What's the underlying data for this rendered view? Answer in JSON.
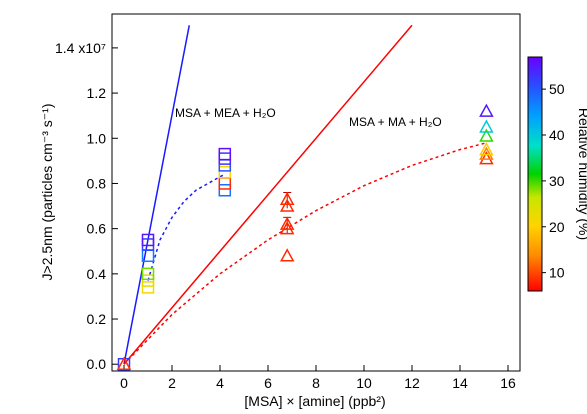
{
  "chart_data": {
    "type": "scatter",
    "x_axis": {
      "label": "[MSA] × [amine] (ppb²)",
      "range": [
        -0.5,
        16.5
      ],
      "ticks": [
        0,
        2,
        4,
        6,
        8,
        10,
        12,
        14,
        16
      ]
    },
    "y_axis": {
      "label": "J>2.5nm (particles cm⁻³ s⁻¹)",
      "range": [
        -300000.0,
        15500000.0
      ],
      "ticks": [
        0.0,
        0.2,
        0.4,
        0.6,
        0.8,
        1.0,
        1.2,
        1.4
      ],
      "tick_labels": [
        "0.0",
        "0.2",
        "0.4",
        "0.6",
        "0.8",
        "1.0",
        "1.2",
        "1.4 x10⁷"
      ]
    },
    "colorbar": {
      "label": "Relative humidity (%)",
      "range": [
        6,
        57
      ],
      "ticks": [
        10,
        20,
        30,
        40,
        50
      ],
      "colors": [
        "#ff0000",
        "#ff8a00",
        "#ffd400",
        "#c8e600",
        "#00d200",
        "#00e0c8",
        "#00a0ff",
        "#2a4cff",
        "#6a00ff"
      ]
    },
    "series": [
      {
        "name": "MSA + MEA + H₂O",
        "marker": "square",
        "color": "#1a1aff",
        "points": [
          {
            "x": 0.0,
            "y": 0.0,
            "rh": 52
          },
          {
            "x": 1.0,
            "y": 3400000.0,
            "rh": 20
          },
          {
            "x": 1.0,
            "y": 3700000.0,
            "rh": 22
          },
          {
            "x": 1.0,
            "y": 4000000.0,
            "rh": 28
          },
          {
            "x": 1.0,
            "y": 4800000.0,
            "rh": 47
          },
          {
            "x": 1.0,
            "y": 5300000.0,
            "rh": 52
          },
          {
            "x": 1.0,
            "y": 5500000.0,
            "rh": 55
          },
          {
            "x": 4.2,
            "y": 7700000.0,
            "rh": 48
          },
          {
            "x": 4.2,
            "y": 8000000.0,
            "rh": 8
          },
          {
            "x": 4.2,
            "y": 8500000.0,
            "rh": 20
          },
          {
            "x": 4.2,
            "y": 8800000.0,
            "rh": 50
          },
          {
            "x": 4.2,
            "y": 9100000.0,
            "rh": 53
          },
          {
            "x": 4.2,
            "y": 9300000.0,
            "rh": 56
          }
        ],
        "fit_line": [
          [
            0,
            0
          ],
          [
            2.72,
            15000000.0
          ]
        ],
        "fit_curve": [
          [
            1.0,
            3700000.0
          ],
          [
            1.5,
            5500000.0
          ],
          [
            2.0,
            6500000.0
          ],
          [
            2.5,
            7200000.0
          ],
          [
            3.0,
            7700000.0
          ],
          [
            3.5,
            8000000.0
          ],
          [
            4.0,
            8300000.0
          ],
          [
            4.2,
            8400000.0
          ]
        ]
      },
      {
        "name": "MSA + MA + H₂O",
        "marker": "triangle",
        "color": "#ff0000",
        "points": [
          {
            "x": 0.0,
            "y": 0.0,
            "rh": 8
          },
          {
            "x": 6.8,
            "y": 4800000.0,
            "rh": 8
          },
          {
            "x": 6.8,
            "y": 6000000.0,
            "rh": 8
          },
          {
            "x": 6.8,
            "y": 6200000.0,
            "rh": 8
          },
          {
            "x": 6.8,
            "y": 7000000.0,
            "rh": 8
          },
          {
            "x": 6.8,
            "y": 7300000.0,
            "rh": 8
          },
          {
            "x": 15.1,
            "y": 9100000.0,
            "rh": 8
          },
          {
            "x": 15.1,
            "y": 9300000.0,
            "rh": 12
          },
          {
            "x": 15.1,
            "y": 9500000.0,
            "rh": 18
          },
          {
            "x": 15.1,
            "y": 10100000.0,
            "rh": 30
          },
          {
            "x": 15.1,
            "y": 10500000.0,
            "rh": 40
          },
          {
            "x": 15.1,
            "y": 11200000.0,
            "rh": 55
          }
        ],
        "error_bars": [
          {
            "x": 6.8,
            "y": 7300000.0,
            "lo": 6900000.0,
            "hi": 7600000.0
          },
          {
            "x": 6.8,
            "y": 6200000.0,
            "lo": 5800000.0,
            "hi": 6500000.0
          }
        ],
        "fit_line": [
          [
            0,
            0
          ],
          [
            12.0,
            15000000.0
          ]
        ],
        "fit_curve": [
          [
            0,
            0
          ],
          [
            2,
            2200000.0
          ],
          [
            4,
            4000000.0
          ],
          [
            6,
            5500000.0
          ],
          [
            8,
            6800000.0
          ],
          [
            10,
            7900000.0
          ],
          [
            12,
            8800000.0
          ],
          [
            14,
            9500000.0
          ],
          [
            15.1,
            9800000.0
          ]
        ]
      }
    ]
  }
}
